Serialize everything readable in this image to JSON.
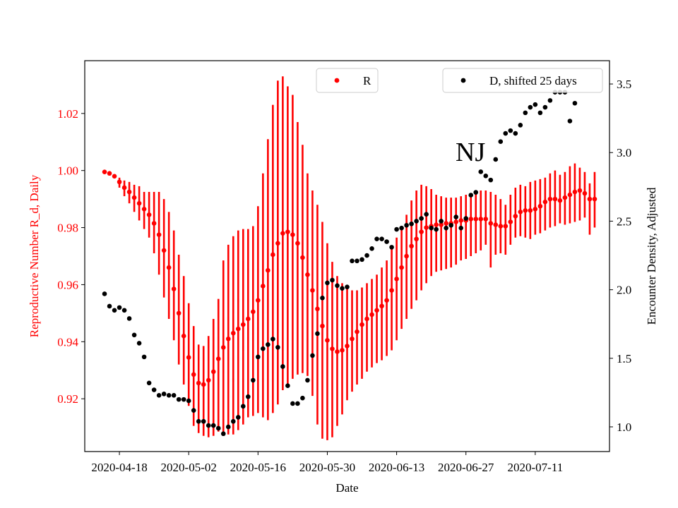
{
  "chart_data": {
    "type": "scatter",
    "annotation": "NJ",
    "xlabel": "Date",
    "ylabel_left": "Reproductive Number R_d, Daily",
    "ylabel_right": "Encounter Density, Adjusted",
    "x_start": "2020-04-15",
    "x_ticks": [
      "2020-04-18",
      "2020-05-02",
      "2020-05-16",
      "2020-05-30",
      "2020-06-13",
      "2020-06-27",
      "2020-07-11"
    ],
    "xlim": [
      "2020-04-11",
      "2020-07-26"
    ],
    "ylim_left": [
      0.9015,
      1.0385
    ],
    "ylim_right": [
      0.82,
      3.67
    ],
    "yticks_left": [
      "0.92",
      "0.94",
      "0.96",
      "0.98",
      "1.00",
      "1.02"
    ],
    "yticks_right": [
      "1.0",
      "1.5",
      "2.0",
      "2.5",
      "3.0",
      "3.5"
    ],
    "left_axis_color": "#ff0000",
    "right_axis_color": "#000000",
    "legend": [
      {
        "label": "R",
        "color": "#ff0000",
        "placement": "top-center"
      },
      {
        "label": "D, shifted 25 days",
        "color": "#000000",
        "placement": "top-right"
      }
    ],
    "series": [
      {
        "name": "R",
        "axis": "left",
        "color": "#ff0000",
        "values": [
          0.9995,
          0.999,
          0.998,
          0.996,
          0.994,
          0.9925,
          0.9905,
          0.9885,
          0.9865,
          0.9845,
          0.9815,
          0.9775,
          0.972,
          0.966,
          0.9585,
          0.95,
          0.942,
          0.9345,
          0.9285,
          0.9255,
          0.925,
          0.9265,
          0.9295,
          0.934,
          0.938,
          0.941,
          0.943,
          0.9445,
          0.946,
          0.948,
          0.9505,
          0.9545,
          0.9595,
          0.965,
          0.9705,
          0.9745,
          0.978,
          0.9785,
          0.9775,
          0.9745,
          0.9695,
          0.9635,
          0.958,
          0.9515,
          0.9455,
          0.9405,
          0.9375,
          0.9365,
          0.937,
          0.9385,
          0.941,
          0.9435,
          0.946,
          0.948,
          0.9495,
          0.951,
          0.9525,
          0.9545,
          0.958,
          0.962,
          0.966,
          0.97,
          0.9735,
          0.976,
          0.9785,
          0.98,
          0.9805,
          0.981,
          0.981,
          0.9815,
          0.9815,
          0.982,
          0.9825,
          0.9825,
          0.983,
          0.983,
          0.983,
          0.983,
          0.9815,
          0.981,
          0.9805,
          0.9805,
          0.982,
          0.984,
          0.9855,
          0.986,
          0.986,
          0.9865,
          0.9875,
          0.989,
          0.99,
          0.99,
          0.9895,
          0.9905,
          0.9915,
          0.9925,
          0.993,
          0.992,
          0.99,
          0.99
        ],
        "error_low": [
          0.9995,
          0.999,
          0.998,
          0.994,
          0.991,
          0.9885,
          0.9855,
          0.9825,
          0.9795,
          0.9765,
          0.971,
          0.9635,
          0.9555,
          0.948,
          0.9405,
          0.932,
          0.925,
          0.9175,
          0.9105,
          0.908,
          0.907,
          0.9065,
          0.907,
          0.9085,
          0.908,
          0.9075,
          0.9075,
          0.909,
          0.911,
          0.9135,
          0.914,
          0.915,
          0.9135,
          0.9125,
          0.915,
          0.918,
          0.923,
          0.924,
          0.927,
          0.9285,
          0.929,
          0.928,
          0.921,
          0.911,
          0.906,
          0.9055,
          0.9065,
          0.9105,
          0.9145,
          0.9195,
          0.9225,
          0.925,
          0.927,
          0.9295,
          0.931,
          0.9325,
          0.9335,
          0.935,
          0.937,
          0.9405,
          0.9445,
          0.948,
          0.9515,
          0.9545,
          0.958,
          0.9605,
          0.963,
          0.9645,
          0.965,
          0.9655,
          0.966,
          0.967,
          0.9685,
          0.969,
          0.97,
          0.971,
          0.972,
          0.974,
          0.966,
          0.9705,
          0.971,
          0.9705,
          0.974,
          0.9765,
          0.977,
          0.9765,
          0.976,
          0.9775,
          0.978,
          0.979,
          0.98,
          0.9805,
          0.9815,
          0.981,
          0.9815,
          0.982,
          0.9825,
          0.9835,
          0.9775,
          0.98
        ],
        "error_high": [
          0.9995,
          0.999,
          0.9985,
          0.9975,
          0.9965,
          0.996,
          0.995,
          0.9945,
          0.9925,
          0.9925,
          0.9925,
          0.9925,
          0.99,
          0.9855,
          0.979,
          0.9705,
          0.963,
          0.9535,
          0.9455,
          0.939,
          0.9385,
          0.942,
          0.948,
          0.955,
          0.9685,
          0.974,
          0.977,
          0.979,
          0.9795,
          0.9795,
          0.9805,
          0.9875,
          0.999,
          1.011,
          1.023,
          1.0315,
          1.033,
          1.0295,
          1.0265,
          1.017,
          1.009,
          0.999,
          0.993,
          0.988,
          0.982,
          0.9745,
          0.968,
          0.963,
          0.9605,
          0.9595,
          0.958,
          0.958,
          0.959,
          0.9605,
          0.962,
          0.9635,
          0.966,
          0.9685,
          0.9725,
          0.9765,
          0.98,
          0.9845,
          0.9895,
          0.993,
          0.995,
          0.9945,
          0.9935,
          0.9915,
          0.991,
          0.9905,
          0.9905,
          0.9905,
          0.991,
          0.9915,
          0.992,
          0.993,
          0.993,
          0.993,
          0.9925,
          0.9915,
          0.99,
          0.988,
          0.9915,
          0.994,
          0.995,
          0.9945,
          0.996,
          0.9965,
          0.997,
          0.9975,
          0.999,
          1.0,
          0.9985,
          0.9995,
          1.0015,
          1.0025,
          1.001,
          0.9995,
          0.9955,
          0.9995
        ]
      },
      {
        "name": "D, shifted 25 days",
        "axis": "right",
        "color": "#000000",
        "values": [
          1.97,
          1.88,
          1.85,
          1.87,
          1.85,
          1.79,
          1.67,
          1.61,
          1.51,
          1.32,
          1.27,
          1.23,
          1.24,
          1.23,
          1.23,
          1.2,
          1.2,
          1.19,
          1.12,
          1.04,
          1.04,
          1.01,
          1.01,
          0.99,
          0.95,
          1.0,
          1.04,
          1.07,
          1.15,
          1.22,
          1.34,
          1.51,
          1.57,
          1.6,
          1.64,
          1.58,
          1.44,
          1.3,
          1.17,
          1.17,
          1.21,
          1.34,
          1.52,
          1.68,
          1.94,
          2.05,
          2.07,
          2.03,
          2.01,
          2.02,
          2.21,
          2.21,
          2.22,
          2.25,
          2.3,
          2.37,
          2.37,
          2.35,
          2.31,
          2.44,
          2.45,
          2.47,
          2.48,
          2.5,
          2.52,
          2.55,
          2.45,
          2.44,
          2.5,
          2.45,
          2.47,
          2.53,
          2.45,
          2.52,
          2.69,
          2.71,
          2.86,
          2.83,
          2.8,
          2.95,
          3.08,
          3.14,
          3.16,
          3.14,
          3.2,
          3.29,
          3.33,
          3.35,
          3.29,
          3.33,
          3.38,
          3.44,
          3.44,
          3.44,
          3.23,
          3.36
        ]
      }
    ]
  }
}
